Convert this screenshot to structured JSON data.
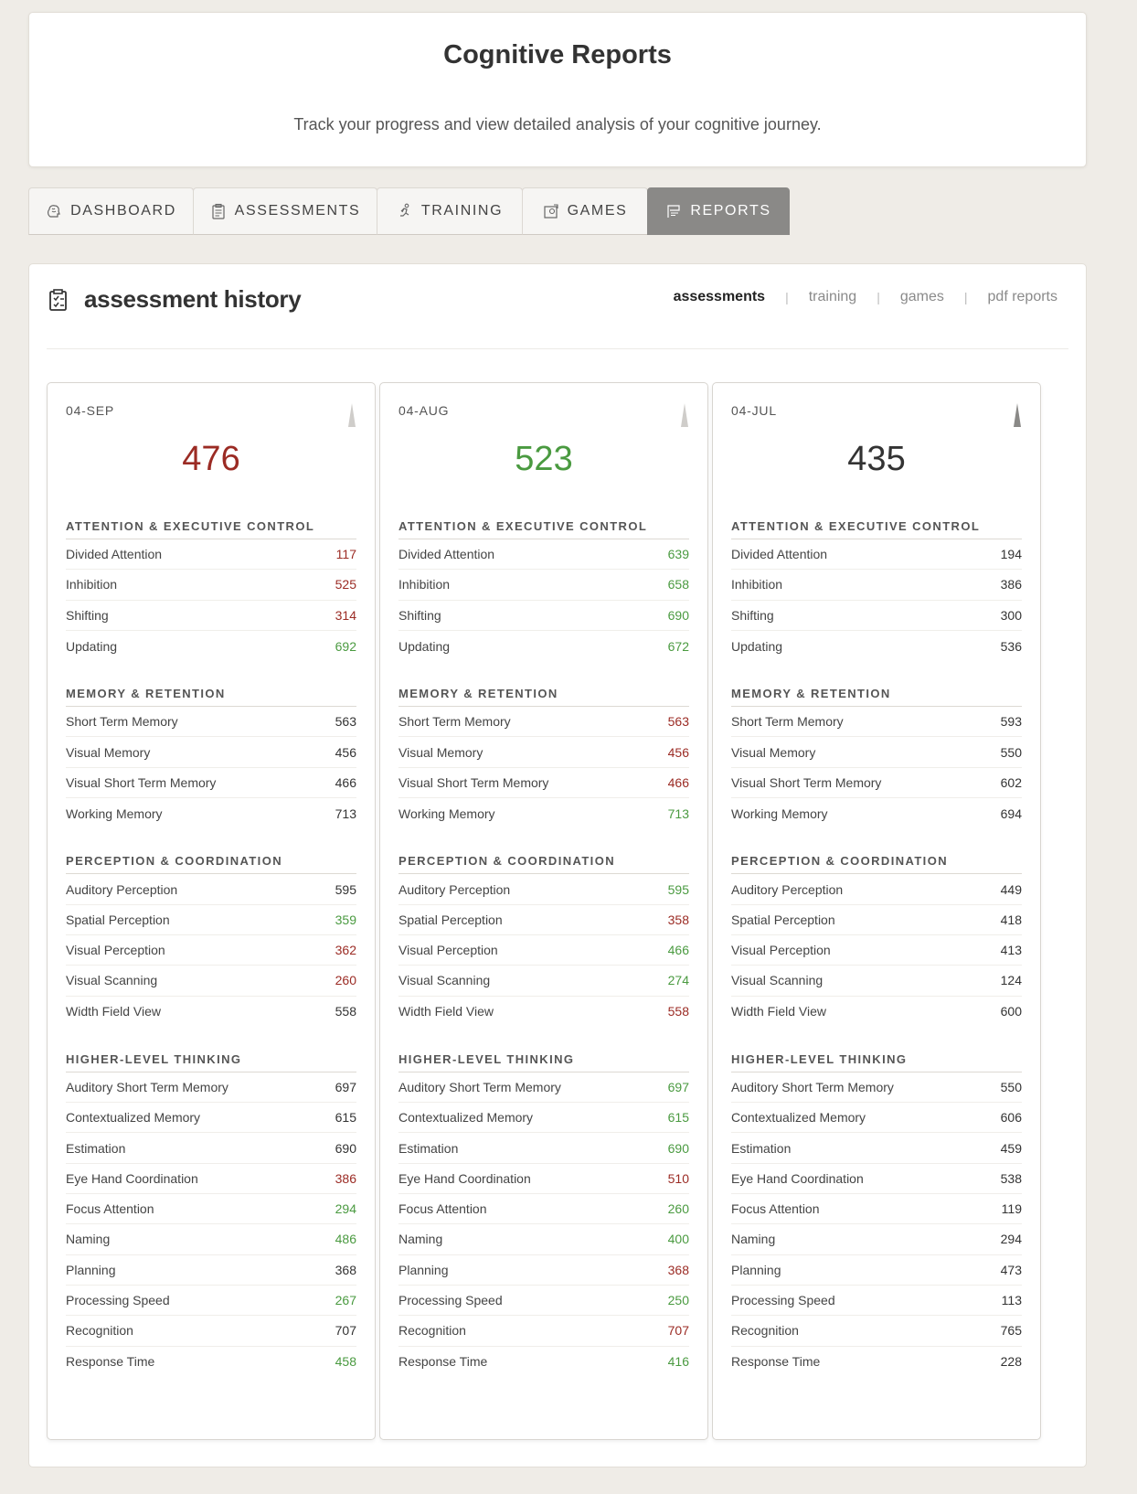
{
  "header": {
    "title": "Cognitive Reports",
    "subtitle": "Track your progress and view detailed analysis of your cognitive journey."
  },
  "tabs": [
    {
      "label": "DASHBOARD",
      "icon": "brain-icon"
    },
    {
      "label": "ASSESSMENTS",
      "icon": "clipboard-icon"
    },
    {
      "label": "TRAINING",
      "icon": "runner-icon"
    },
    {
      "label": "GAMES",
      "icon": "puzzle-icon"
    },
    {
      "label": "REPORTS",
      "icon": "flag-icon",
      "active": true
    }
  ],
  "panel": {
    "title": "assessment history",
    "subnav": [
      "assessments",
      "training",
      "games",
      "pdf reports"
    ],
    "active_subnav": "assessments"
  },
  "colors": {
    "up": "#4a9a40",
    "down": "#9b2b24",
    "neutral": "#333333"
  },
  "cards": [
    {
      "date": "04-SEP",
      "score": "476",
      "score_trend": "down",
      "sections": [
        {
          "title": "ATTENTION & EXECUTIVE CONTROL",
          "rows": [
            {
              "label": "Divided Attention",
              "value": "117",
              "trend": "down"
            },
            {
              "label": "Inhibition",
              "value": "525",
              "trend": "down"
            },
            {
              "label": "Shifting",
              "value": "314",
              "trend": "down"
            },
            {
              "label": "Updating",
              "value": "692",
              "trend": "up"
            }
          ]
        },
        {
          "title": "MEMORY & RETENTION",
          "rows": [
            {
              "label": "Short Term Memory",
              "value": "563",
              "trend": "neutral"
            },
            {
              "label": "Visual Memory",
              "value": "456",
              "trend": "neutral"
            },
            {
              "label": "Visual Short Term Memory",
              "value": "466",
              "trend": "neutral"
            },
            {
              "label": "Working Memory",
              "value": "713",
              "trend": "neutral"
            }
          ]
        },
        {
          "title": "PERCEPTION & COORDINATION",
          "rows": [
            {
              "label": "Auditory Perception",
              "value": "595",
              "trend": "neutral"
            },
            {
              "label": "Spatial Perception",
              "value": "359",
              "trend": "up"
            },
            {
              "label": "Visual Perception",
              "value": "362",
              "trend": "down"
            },
            {
              "label": "Visual Scanning",
              "value": "260",
              "trend": "down"
            },
            {
              "label": "Width Field View",
              "value": "558",
              "trend": "neutral"
            }
          ]
        },
        {
          "title": "HIGHER-LEVEL THINKING",
          "rows": [
            {
              "label": "Auditory Short Term Memory",
              "value": "697",
              "trend": "neutral"
            },
            {
              "label": "Contextualized Memory",
              "value": "615",
              "trend": "neutral"
            },
            {
              "label": "Estimation",
              "value": "690",
              "trend": "neutral"
            },
            {
              "label": "Eye Hand Coordination",
              "value": "386",
              "trend": "down"
            },
            {
              "label": "Focus Attention",
              "value": "294",
              "trend": "up"
            },
            {
              "label": "Naming",
              "value": "486",
              "trend": "up"
            },
            {
              "label": "Planning",
              "value": "368",
              "trend": "neutral"
            },
            {
              "label": "Processing Speed",
              "value": "267",
              "trend": "up"
            },
            {
              "label": "Recognition",
              "value": "707",
              "trend": "neutral"
            },
            {
              "label": "Response Time",
              "value": "458",
              "trend": "up"
            }
          ]
        }
      ]
    },
    {
      "date": "04-AUG",
      "score": "523",
      "score_trend": "up",
      "sections": [
        {
          "title": "ATTENTION & EXECUTIVE CONTROL",
          "rows": [
            {
              "label": "Divided Attention",
              "value": "639",
              "trend": "up"
            },
            {
              "label": "Inhibition",
              "value": "658",
              "trend": "up"
            },
            {
              "label": "Shifting",
              "value": "690",
              "trend": "up"
            },
            {
              "label": "Updating",
              "value": "672",
              "trend": "up"
            }
          ]
        },
        {
          "title": "MEMORY & RETENTION",
          "rows": [
            {
              "label": "Short Term Memory",
              "value": "563",
              "trend": "down"
            },
            {
              "label": "Visual Memory",
              "value": "456",
              "trend": "down"
            },
            {
              "label": "Visual Short Term Memory",
              "value": "466",
              "trend": "down"
            },
            {
              "label": "Working Memory",
              "value": "713",
              "trend": "up"
            }
          ]
        },
        {
          "title": "PERCEPTION & COORDINATION",
          "rows": [
            {
              "label": "Auditory Perception",
              "value": "595",
              "trend": "up"
            },
            {
              "label": "Spatial Perception",
              "value": "358",
              "trend": "down"
            },
            {
              "label": "Visual Perception",
              "value": "466",
              "trend": "up"
            },
            {
              "label": "Visual Scanning",
              "value": "274",
              "trend": "up"
            },
            {
              "label": "Width Field View",
              "value": "558",
              "trend": "down"
            }
          ]
        },
        {
          "title": "HIGHER-LEVEL THINKING",
          "rows": [
            {
              "label": "Auditory Short Term Memory",
              "value": "697",
              "trend": "up"
            },
            {
              "label": "Contextualized Memory",
              "value": "615",
              "trend": "up"
            },
            {
              "label": "Estimation",
              "value": "690",
              "trend": "up"
            },
            {
              "label": "Eye Hand Coordination",
              "value": "510",
              "trend": "down"
            },
            {
              "label": "Focus Attention",
              "value": "260",
              "trend": "up"
            },
            {
              "label": "Naming",
              "value": "400",
              "trend": "up"
            },
            {
              "label": "Planning",
              "value": "368",
              "trend": "down"
            },
            {
              "label": "Processing Speed",
              "value": "250",
              "trend": "up"
            },
            {
              "label": "Recognition",
              "value": "707",
              "trend": "down"
            },
            {
              "label": "Response Time",
              "value": "416",
              "trend": "up"
            }
          ]
        }
      ]
    },
    {
      "date": "04-JUL",
      "score": "435",
      "score_trend": "neutral",
      "sections": [
        {
          "title": "ATTENTION & EXECUTIVE CONTROL",
          "rows": [
            {
              "label": "Divided Attention",
              "value": "194",
              "trend": "neutral"
            },
            {
              "label": "Inhibition",
              "value": "386",
              "trend": "neutral"
            },
            {
              "label": "Shifting",
              "value": "300",
              "trend": "neutral"
            },
            {
              "label": "Updating",
              "value": "536",
              "trend": "neutral"
            }
          ]
        },
        {
          "title": "MEMORY & RETENTION",
          "rows": [
            {
              "label": "Short Term Memory",
              "value": "593",
              "trend": "neutral"
            },
            {
              "label": "Visual Memory",
              "value": "550",
              "trend": "neutral"
            },
            {
              "label": "Visual Short Term Memory",
              "value": "602",
              "trend": "neutral"
            },
            {
              "label": "Working Memory",
              "value": "694",
              "trend": "neutral"
            }
          ]
        },
        {
          "title": "PERCEPTION & COORDINATION",
          "rows": [
            {
              "label": "Auditory Perception",
              "value": "449",
              "trend": "neutral"
            },
            {
              "label": "Spatial Perception",
              "value": "418",
              "trend": "neutral"
            },
            {
              "label": "Visual Perception",
              "value": "413",
              "trend": "neutral"
            },
            {
              "label": "Visual Scanning",
              "value": "124",
              "trend": "neutral"
            },
            {
              "label": "Width Field View",
              "value": "600",
              "trend": "neutral"
            }
          ]
        },
        {
          "title": "HIGHER-LEVEL THINKING",
          "rows": [
            {
              "label": "Auditory Short Term Memory",
              "value": "550",
              "trend": "neutral"
            },
            {
              "label": "Contextualized Memory",
              "value": "606",
              "trend": "neutral"
            },
            {
              "label": "Estimation",
              "value": "459",
              "trend": "neutral"
            },
            {
              "label": "Eye Hand Coordination",
              "value": "538",
              "trend": "neutral"
            },
            {
              "label": "Focus Attention",
              "value": "119",
              "trend": "neutral"
            },
            {
              "label": "Naming",
              "value": "294",
              "trend": "neutral"
            },
            {
              "label": "Planning",
              "value": "473",
              "trend": "neutral"
            },
            {
              "label": "Processing Speed",
              "value": "113",
              "trend": "neutral"
            },
            {
              "label": "Recognition",
              "value": "765",
              "trend": "neutral"
            },
            {
              "label": "Response Time",
              "value": "228",
              "trend": "neutral"
            }
          ]
        }
      ]
    }
  ]
}
